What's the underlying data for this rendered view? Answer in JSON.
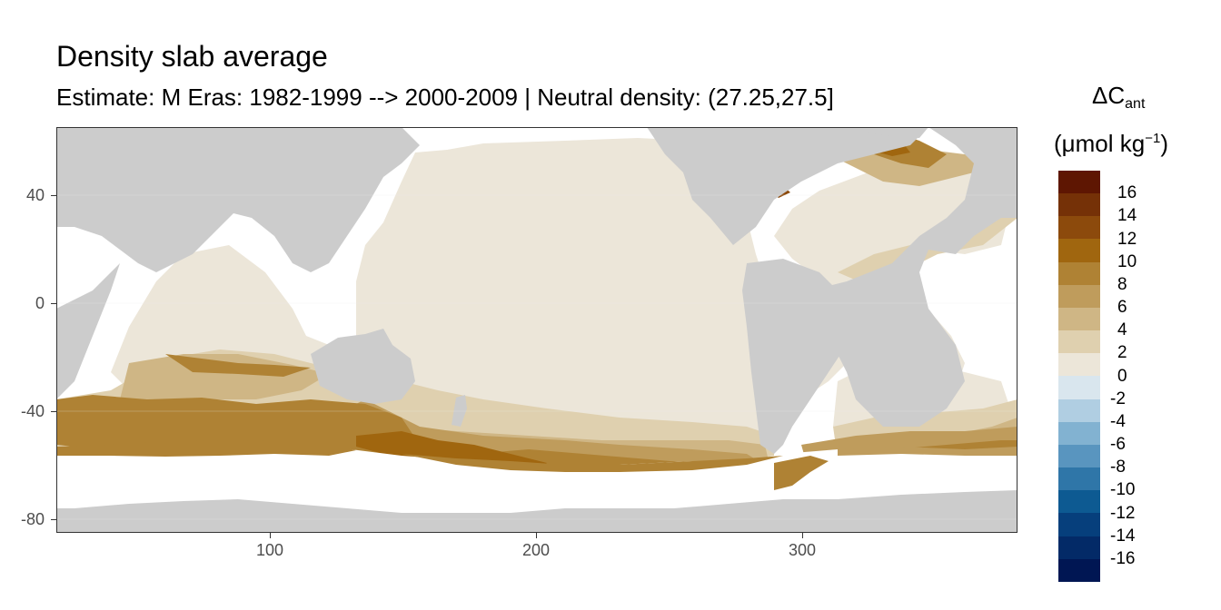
{
  "title": "Density slab average",
  "subtitle": "Estimate: M Eras: 1982-1999 --> 2000-2009 | Neutral density: (27.25,27.5]",
  "legend": {
    "title_line1_main": "ΔC",
    "title_line1_sub": "ant",
    "title_line2_main": "(μmol kg",
    "title_line2_sup": "−1",
    "title_line2_end": ")",
    "labels": [
      "16",
      "14",
      "12",
      "10",
      "8",
      "6",
      "4",
      "2",
      "0",
      "-2",
      "-4",
      "-6",
      "-8",
      "-10",
      "-12",
      "-14",
      "-16"
    ],
    "colors": [
      "#5e1602",
      "#753107",
      "#8c4a0c",
      "#a0660f",
      "#af8234",
      "#bf9c5c",
      "#cfb685",
      "#dfd0af",
      "#ece6d9",
      "#d9e6ee",
      "#b0cee2",
      "#82b2d1",
      "#5995bf",
      "#2f76a8",
      "#0d5a92",
      "#063f7c",
      "#032a67",
      "#001653"
    ]
  },
  "axes": {
    "y_ticks": [
      "40",
      "0",
      "-40",
      "-80"
    ],
    "x_ticks": [
      "100",
      "200",
      "300"
    ]
  },
  "map": {
    "land_color": "#cccccc",
    "no_data_color": "#ffffff",
    "x_range": [
      20,
      382
    ],
    "y_range": [
      -85,
      65
    ]
  }
}
